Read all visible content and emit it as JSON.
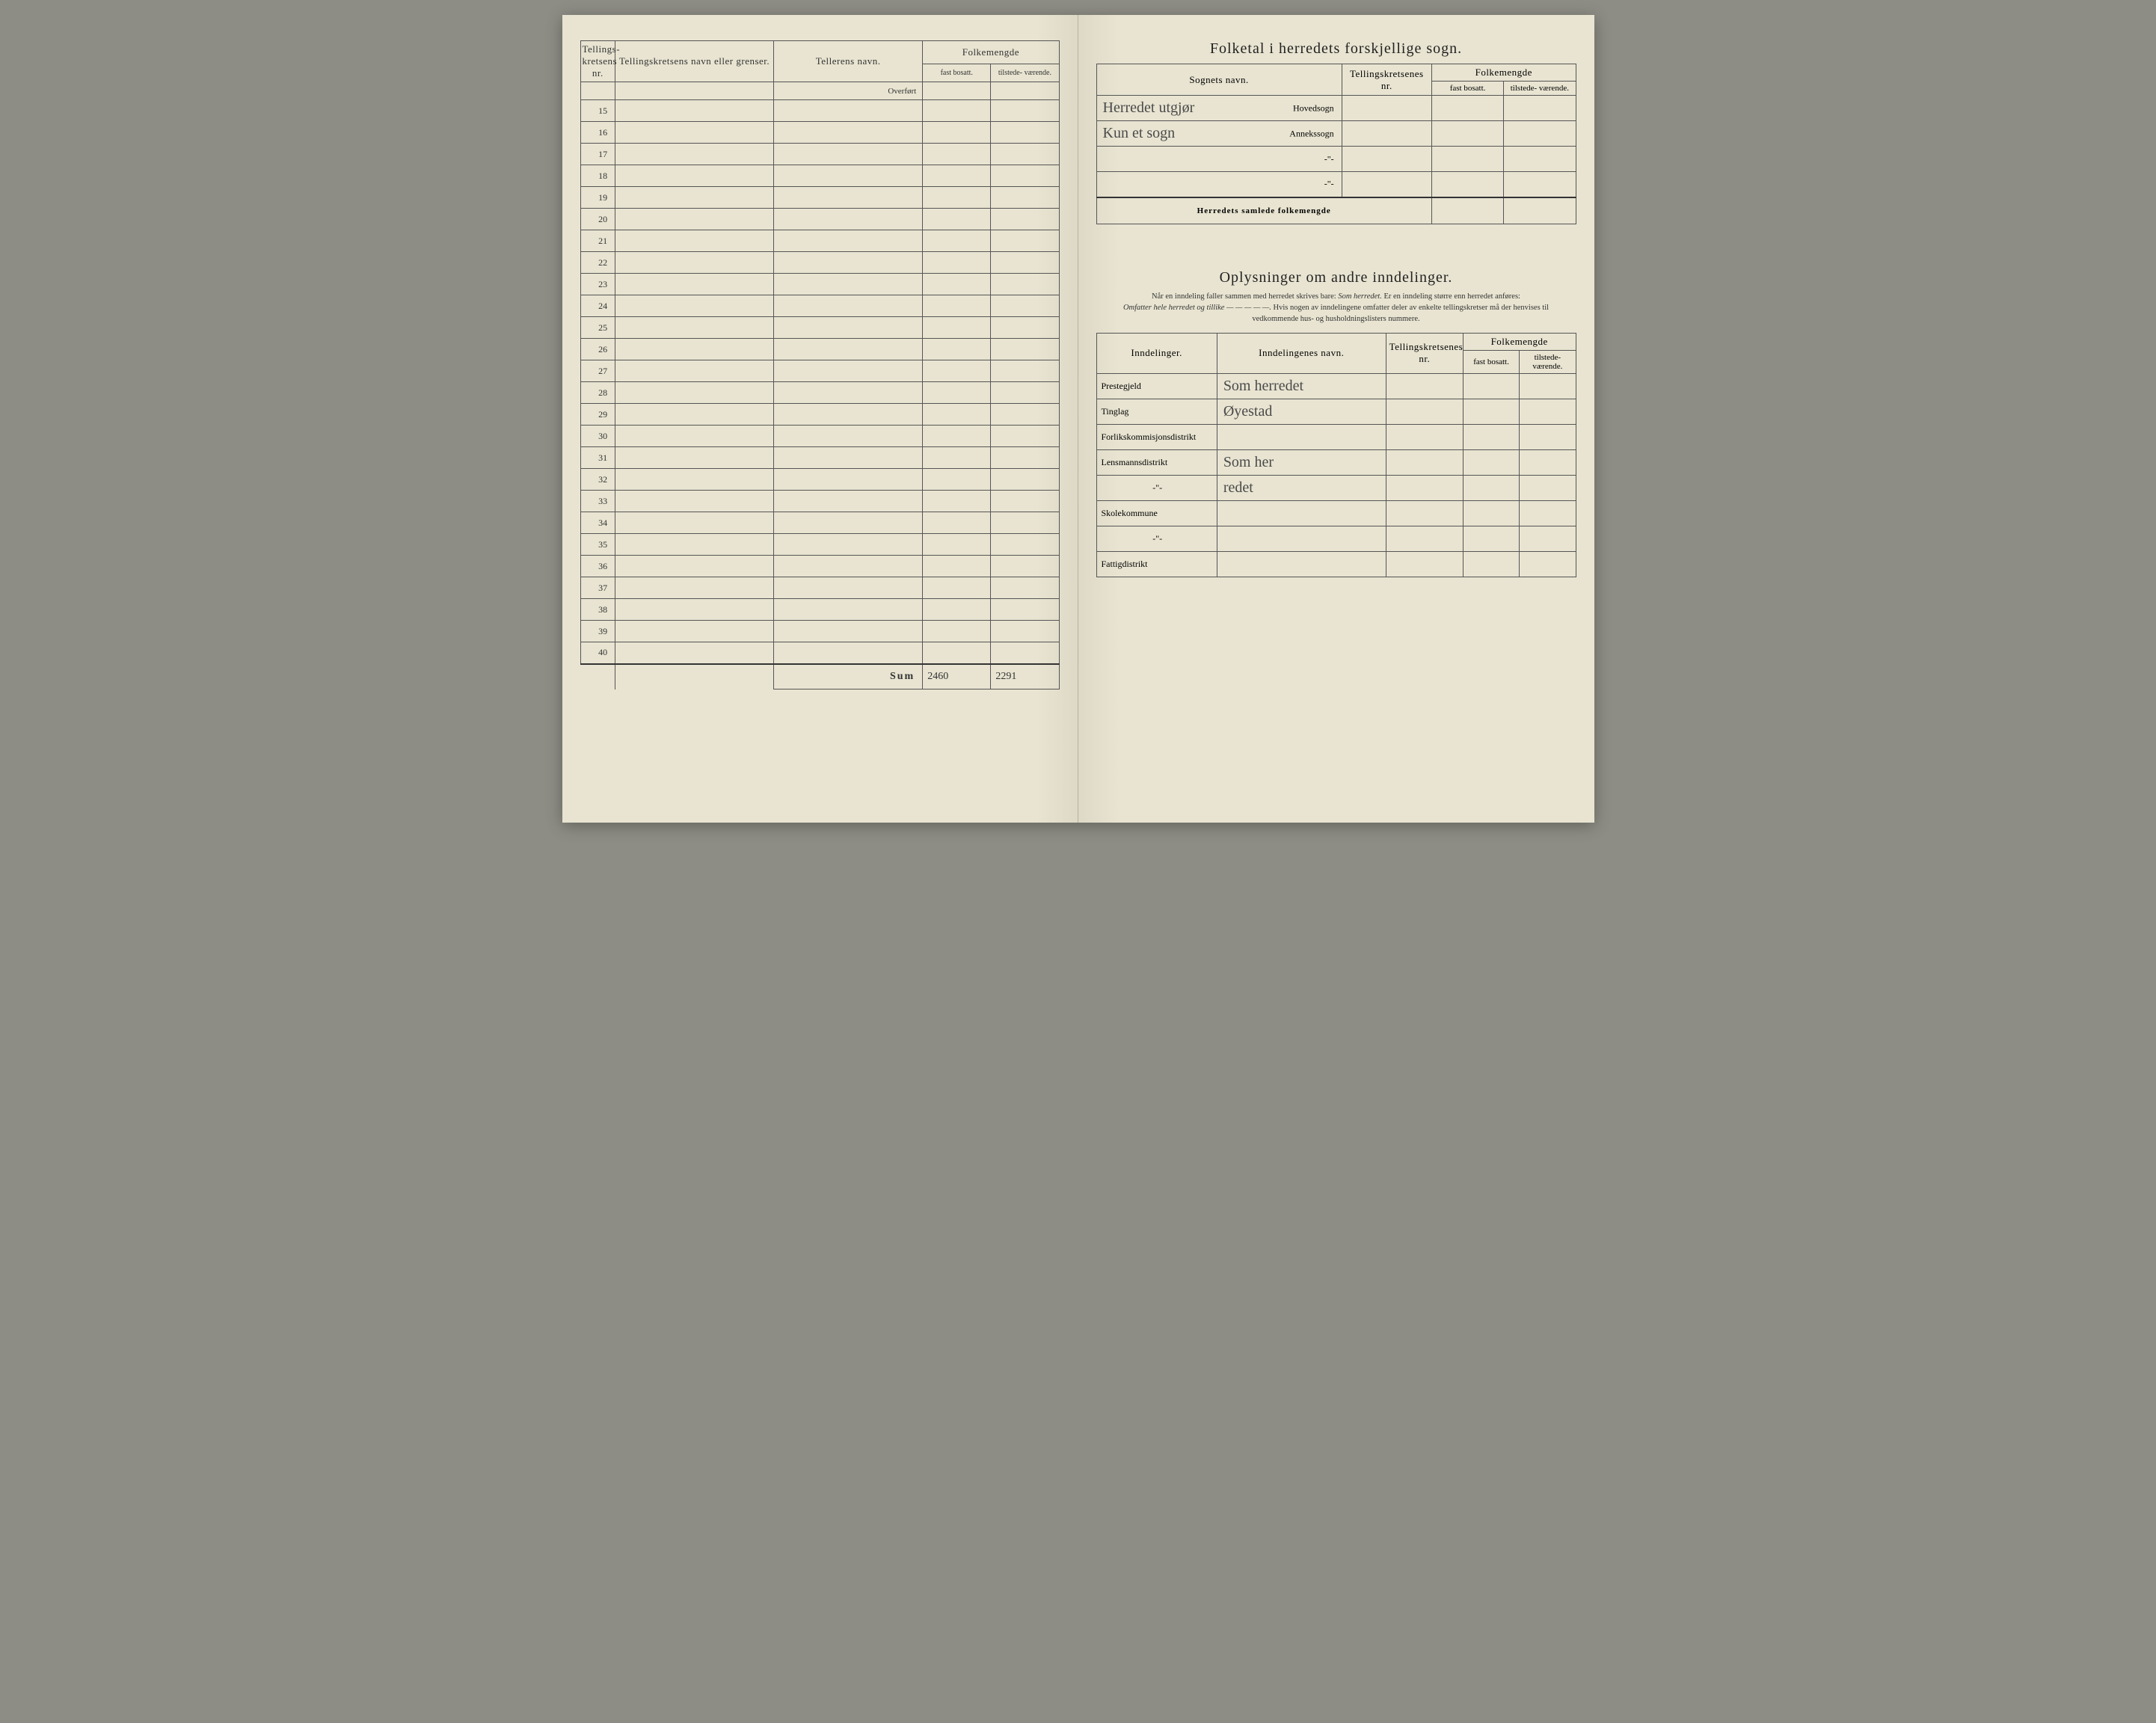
{
  "colors": {
    "paper": "#e8e4d1",
    "paper_shadow": "#ddd9c6",
    "border": "#555555",
    "text": "#333333",
    "hand_ink": "#4a4a4a",
    "clip": "#8a5a3a",
    "backdrop": "#8d8d85"
  },
  "left_page": {
    "headers": {
      "nr": "Tellings-\nkretsens\nnr.",
      "navn": "Tellingskretsens navn eller grenser.",
      "teller": "Tellerens navn.",
      "folkemengde": "Folkemengde",
      "fast": "fast\nbosatt.",
      "tilstede": "tilstede-\nværende."
    },
    "overfort_label": "Overført",
    "row_start": 15,
    "row_end": 40,
    "sum_label": "Sum",
    "sum_fast": "2460",
    "sum_tilstede": "2291"
  },
  "right_page": {
    "title1": "Folketal i herredets forskjellige sogn.",
    "sogn_headers": {
      "sogn": "Sognets navn.",
      "krets": "Tellingskretsenes\nnr.",
      "folkemengde": "Folkemengde",
      "fast": "fast\nbosatt.",
      "tilstede": "tilstede-\nværende."
    },
    "sogn_rows": [
      {
        "hand": "Herredet utgjør",
        "type": "Hovedsogn"
      },
      {
        "hand": "Kun et sogn",
        "type": "Annekssogn"
      },
      {
        "hand": "",
        "type": "-\"-"
      },
      {
        "hand": "",
        "type": "-\"-"
      }
    ],
    "samlede_label": "Herredets samlede folkemengde",
    "section2_title": "Oplysninger om andre inndelinger.",
    "section2_note_a": "Når en inndeling faller sammen med herredet skrives bare: ",
    "section2_note_b": "Som herredet.",
    "section2_note_c": "  Er en inndeling større enn herredet anføres:",
    "section2_note_d": "Omfatter hele herredet og tillike — — — — —.",
    "section2_note_e": "  Hvis nogen av inndelingene omfatter deler av enkelte tellingskretser må der henvises til vedkommende hus- og husholdningslisters nummere.",
    "innd_headers": {
      "inndelinger": "Inndelinger.",
      "navn": "Inndelingenes navn.",
      "krets": "Tellingskretsenes\nnr.",
      "folkemengde": "Folkemengde",
      "fast": "fast\nbosatt.",
      "tilstede": "tilstede-\nværende."
    },
    "innd_rows": [
      {
        "label": "Prestegjeld",
        "value": "Som herredet"
      },
      {
        "label": "Tinglag",
        "value": "Øyestad"
      },
      {
        "label": "Forlikskommisjonsdistrikt",
        "value": ""
      },
      {
        "label": "Lensmannsdistrikt",
        "value": "Som her"
      },
      {
        "label": "-\"-",
        "value": "redet"
      },
      {
        "label": "Skolekommune",
        "value": ""
      },
      {
        "label": "-\"-",
        "value": ""
      },
      {
        "label": "Fattigdistrikt",
        "value": ""
      }
    ]
  }
}
